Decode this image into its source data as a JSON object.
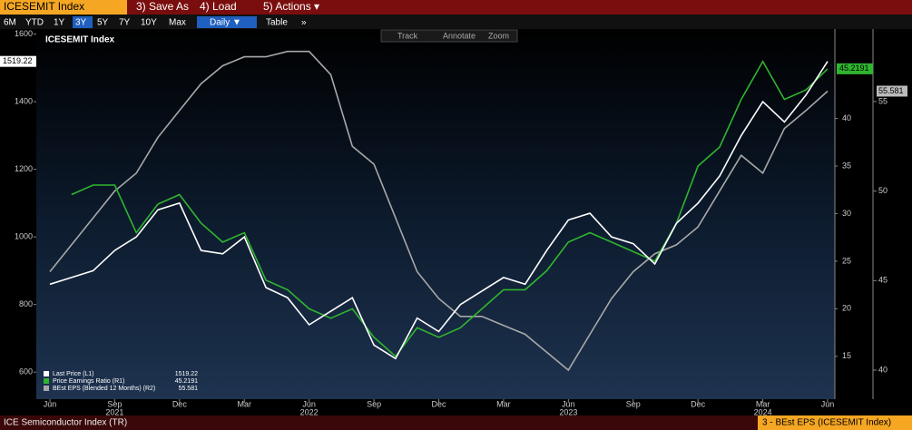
{
  "toolbar": {
    "ticker": "ICESEMIT Index",
    "menu": [
      "3) Save As",
      "4) Load",
      "5) Actions ▾"
    ],
    "ranges": [
      "6M",
      "YTD",
      "1Y",
      "3Y",
      "5Y",
      "7Y",
      "10Y",
      "Max"
    ],
    "active_range": "3Y",
    "frequency": "Daily ▼",
    "table": "Table",
    "more": "»",
    "tools": [
      "Track",
      "Annotate",
      "Zoom"
    ]
  },
  "chart_data": {
    "type": "line",
    "title": "ICESEMIT Index",
    "x": [
      "2021-06",
      "2021-07",
      "2021-08",
      "2021-09",
      "2021-10",
      "2021-11",
      "2021-12",
      "2022-01",
      "2022-02",
      "2022-03",
      "2022-04",
      "2022-05",
      "2022-06",
      "2022-07",
      "2022-08",
      "2022-09",
      "2022-10",
      "2022-11",
      "2022-12",
      "2023-01",
      "2023-02",
      "2023-03",
      "2023-04",
      "2023-05",
      "2023-06",
      "2023-07",
      "2023-08",
      "2023-09",
      "2023-10",
      "2023-11",
      "2023-12",
      "2024-01",
      "2024-02",
      "2024-03",
      "2024-04",
      "2024-05",
      "2024-06"
    ],
    "xticks": [
      {
        "value": "2021-06",
        "label": "Jun"
      },
      {
        "value": "2021-09",
        "label": "Sep"
      },
      {
        "value": "2021-12",
        "label": "Dec"
      },
      {
        "value": "2022-03",
        "label": "Mar"
      },
      {
        "value": "2022-06",
        "label": "Jun"
      },
      {
        "value": "2022-09",
        "label": "Sep"
      },
      {
        "value": "2022-12",
        "label": "Dec"
      },
      {
        "value": "2023-03",
        "label": "Mar"
      },
      {
        "value": "2023-06",
        "label": "Jun"
      },
      {
        "value": "2023-09",
        "label": "Sep"
      },
      {
        "value": "2023-12",
        "label": "Dec"
      },
      {
        "value": "2024-03",
        "label": "Mar"
      },
      {
        "value": "2024-06",
        "label": "Jun"
      }
    ],
    "year_labels": [
      {
        "value": "2021-09",
        "label": "2021"
      },
      {
        "value": "2022-06",
        "label": "2022"
      },
      {
        "value": "2023-06",
        "label": "2023"
      },
      {
        "value": "2024-03",
        "label": "2024"
      }
    ],
    "ylim": [
      520,
      1615
    ],
    "yticks": [
      600,
      800,
      1000,
      1200,
      1400,
      1600
    ],
    "y2lim": [
      10.5,
      49.4
    ],
    "y2ticks": [
      15,
      20,
      25,
      30,
      35,
      40
    ],
    "y3lim": [
      38.38,
      59.05
    ],
    "y3ticks": [
      40,
      45,
      50,
      55
    ],
    "series": [
      {
        "name": "Last Price  (L1)",
        "color": "#ffffff",
        "axis": "y",
        "last": 1519.22,
        "values": [
          860,
          880,
          900,
          960,
          1000,
          1080,
          1100,
          960,
          950,
          1000,
          850,
          820,
          740,
          780,
          820,
          680,
          640,
          760,
          720,
          800,
          840,
          880,
          860,
          960,
          1050,
          1070,
          1000,
          980,
          920,
          1040,
          1100,
          1180,
          1300,
          1400,
          1340,
          1420,
          1519.22
        ]
      },
      {
        "name": "Price Earnings Ratio  (R1)",
        "color": "#2fb52f",
        "axis": "y2",
        "last": 45.2191,
        "values": [
          null,
          32,
          33,
          33,
          28,
          31,
          32,
          29,
          27,
          28,
          23,
          22,
          20,
          19,
          20,
          17,
          15,
          18,
          17,
          18,
          20,
          22,
          22,
          24,
          27,
          28,
          27,
          26,
          25,
          29,
          35,
          37,
          42,
          46,
          42,
          43,
          45.2191
        ]
      },
      {
        "name": "BEst EPS (Blended 12 Months)  (R2)",
        "color": "#a8a8a8",
        "axis": "y3",
        "last": 55.581,
        "values": [
          45.5,
          47,
          48.5,
          50,
          51,
          53,
          54.5,
          56,
          57,
          57.5,
          57.5,
          57.8,
          57.8,
          56.5,
          52.5,
          51.5,
          48.5,
          45.5,
          44,
          43,
          43,
          42.5,
          42,
          41,
          40,
          42,
          44,
          45.5,
          46.5,
          47,
          48,
          50,
          52,
          51,
          53.5,
          54.5,
          55.581
        ]
      }
    ]
  },
  "footer": {
    "left": "ICE Semiconductor Index (TR)",
    "right": "3 - BEst EPS (ICESEMIT Index)"
  }
}
